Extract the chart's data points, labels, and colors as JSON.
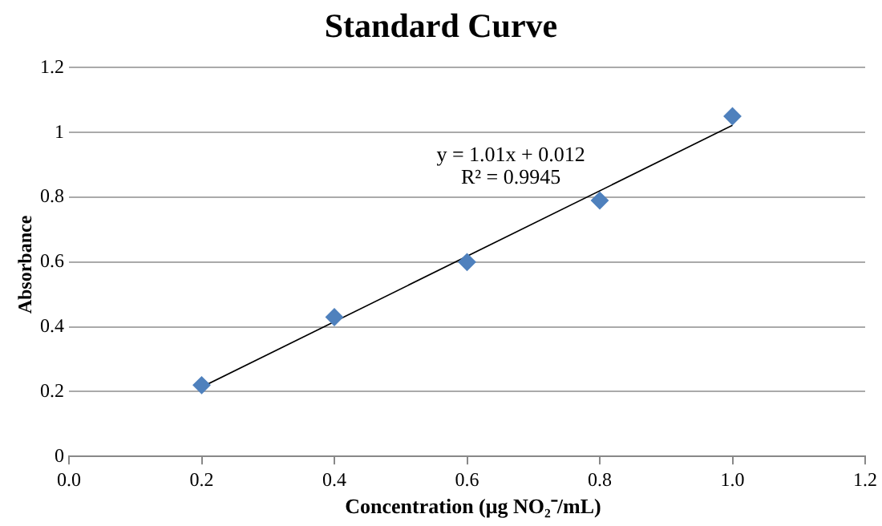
{
  "chart_data": {
    "type": "scatter",
    "title": "Standard Curve",
    "xlabel": "Concentration (μg NO₂⁻/mL)",
    "ylabel": "Absorbance",
    "annotations": [
      "y = 1.01x + 0.012",
      "R² = 0.9945"
    ],
    "series": [
      {
        "color": "#4f81bd",
        "x": [
          0.2,
          0.4,
          0.6,
          0.8,
          1.0
        ],
        "values": [
          0.22,
          0.43,
          0.6,
          0.79,
          1.05
        ]
      },
      {
        "type": "line",
        "color": "#000000",
        "x": [
          0.2,
          1.0
        ],
        "values": [
          0.214,
          1.022
        ],
        "line_style": "solid",
        "marker": "none"
      }
    ],
    "marker": "diamond",
    "grid": "y",
    "legend": false,
    "xlim": [
      0,
      1.2
    ],
    "xticks": [
      {
        "value": 0,
        "label": "0.0"
      },
      {
        "value": 0.2,
        "label": "0.2"
      },
      {
        "value": 0.4,
        "label": "0.4"
      },
      {
        "value": 0.6,
        "label": "0.6"
      },
      {
        "value": 0.8,
        "label": "0.8"
      },
      {
        "value": 1.0,
        "label": "1.0"
      },
      {
        "value": 1.2,
        "label": "1.2"
      }
    ],
    "ylim": [
      0,
      1.2
    ],
    "yticks": [
      0,
      0.2,
      0.4,
      0.6,
      0.8,
      1,
      1.2
    ]
  }
}
